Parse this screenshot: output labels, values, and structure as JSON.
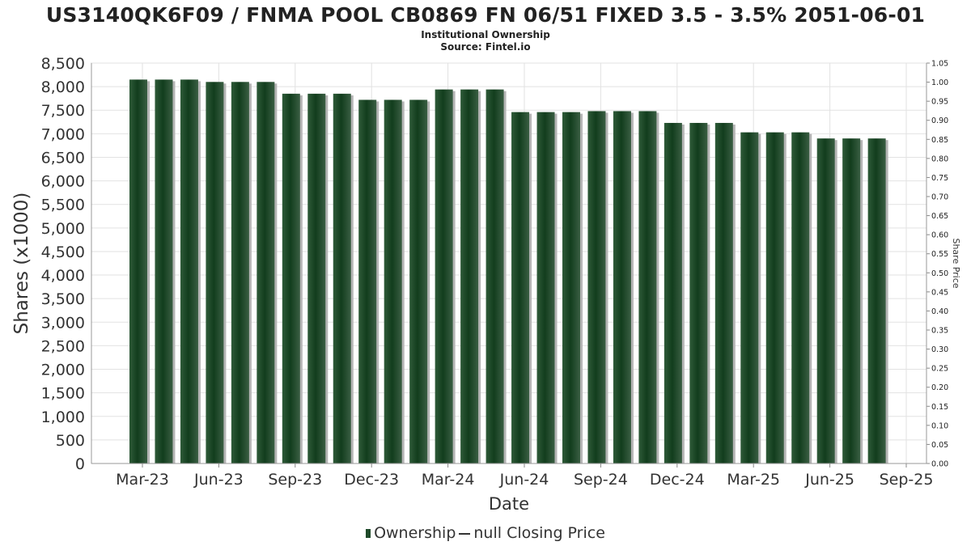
{
  "chart_data": {
    "type": "bar",
    "title": "US3140QK6F09 / FNMA POOL CB0869 FN 06/51 FIXED 3.5 - 3.5% 2051-06-01",
    "subtitle": [
      "Institutional Ownership",
      "Source: Fintel.io"
    ],
    "xlabel": "Date",
    "ylabel": "Shares (x1000)",
    "y2label": "Share Price",
    "ylim": [
      0,
      8500
    ],
    "y2lim": [
      0,
      1.05
    ],
    "yticks": [
      "0",
      "500",
      "1,000",
      "1,500",
      "2,000",
      "2,500",
      "3,000",
      "3,500",
      "4,000",
      "4,500",
      "5,000",
      "5,500",
      "6,000",
      "6,500",
      "7,000",
      "7,500",
      "8,000",
      "8,500"
    ],
    "y2ticks": [
      "0.00",
      "0.05",
      "0.10",
      "0.15",
      "0.20",
      "0.25",
      "0.30",
      "0.35",
      "0.40",
      "0.45",
      "0.50",
      "0.55",
      "0.60",
      "0.65",
      "0.70",
      "0.75",
      "0.80",
      "0.85",
      "0.90",
      "0.95",
      "1.00",
      "1.05"
    ],
    "xticks": [
      "Mar-23",
      "Jun-23",
      "Sep-23",
      "Dec-23",
      "Mar-24",
      "Jun-24",
      "Sep-24",
      "Dec-24",
      "Mar-25",
      "Jun-25",
      "Sep-25"
    ],
    "grid": true,
    "legend_position": "bottom",
    "series": [
      {
        "name": "Ownership",
        "color": "#1f4a2a",
        "values": [
          8150,
          8150,
          8150,
          8100,
          8100,
          8100,
          7850,
          7850,
          7850,
          7720,
          7720,
          7720,
          7940,
          7940,
          7940,
          7460,
          7460,
          7460,
          7480,
          7480,
          7480,
          7230,
          7230,
          7230,
          7030,
          7030,
          7030,
          6900,
          6900,
          6900
        ]
      }
    ],
    "legend": [
      "Ownership",
      "null Closing Price"
    ]
  }
}
